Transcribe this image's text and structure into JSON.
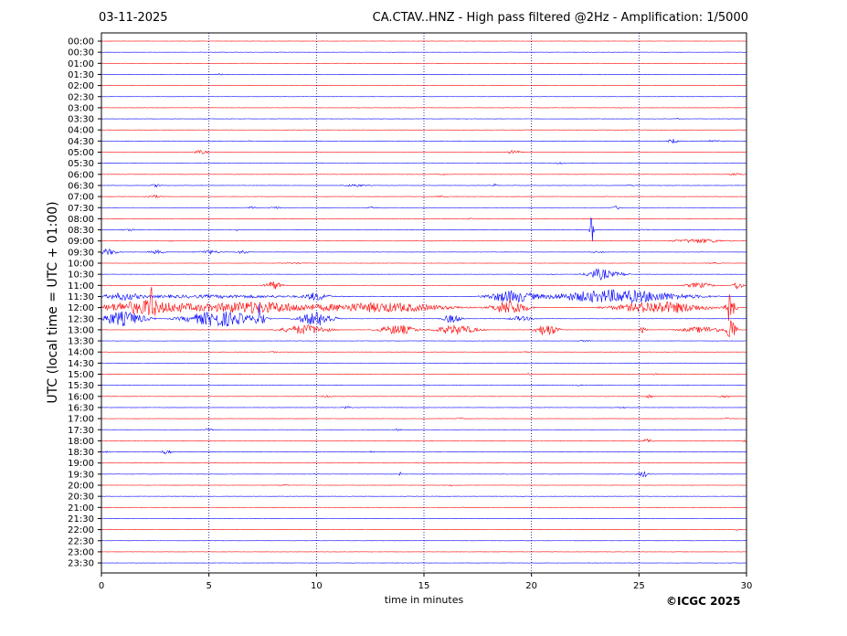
{
  "header": {
    "date": "03-11-2025",
    "title": "CA.CTAV..HNZ - High pass filtered @2Hz - Amplification: 1/5000"
  },
  "footer": {
    "copyright": "©ICGC 2025"
  },
  "chart_data": {
    "type": "line",
    "title": "CA.CTAV..HNZ - High pass filtered @2Hz - Amplification: 1/5000",
    "xlabel": "time in minutes",
    "ylabel": "UTC (local time = UTC + 01:00)",
    "xlim": [
      0,
      30
    ],
    "x_ticks": [
      0,
      5,
      10,
      15,
      20,
      25,
      30
    ],
    "grid": {
      "x": "dotted vertical at 5-minute ticks",
      "y": "one trace baseline per 30-minute row"
    },
    "row_labels": [
      "00:00",
      "00:30",
      "01:00",
      "01:30",
      "02:00",
      "02:30",
      "03:00",
      "03:30",
      "04:00",
      "04:30",
      "05:00",
      "05:30",
      "06:00",
      "06:30",
      "07:00",
      "07:30",
      "08:00",
      "08:30",
      "09:00",
      "09:30",
      "10:00",
      "10:30",
      "11:00",
      "11:30",
      "12:00",
      "12:30",
      "13:00",
      "13:30",
      "14:00",
      "14:30",
      "15:00",
      "15:30",
      "16:00",
      "16:30",
      "17:00",
      "17:30",
      "18:00",
      "18:30",
      "19:00",
      "19:30",
      "20:00",
      "20:30",
      "21:00",
      "21:30",
      "22:00",
      "22:30",
      "23:00",
      "23:30"
    ],
    "series_colors": [
      "#ff0000",
      "#0000ff"
    ],
    "activity": [
      {
        "row": "01:30",
        "bursts": [
          [
            5.5,
            0.3,
            0.15
          ],
          [
            22.3,
            0.2,
            0.1
          ]
        ]
      },
      {
        "row": "03:30",
        "bursts": [
          [
            26.8,
            0.2,
            0.1
          ]
        ]
      },
      {
        "row": "04:30",
        "bursts": [
          [
            6.9,
            0.2,
            0.08
          ],
          [
            26.6,
            0.5,
            0.35
          ],
          [
            28.5,
            1.5,
            0.1
          ]
        ]
      },
      {
        "row": "05:00",
        "bursts": [
          [
            4.6,
            0.7,
            0.3
          ],
          [
            19.2,
            0.6,
            0.3
          ]
        ]
      },
      {
        "row": "05:30",
        "bursts": [
          [
            21.3,
            0.5,
            0.12
          ]
        ]
      },
      {
        "row": "06:00",
        "bursts": [
          [
            15.9,
            0.4,
            0.1
          ],
          [
            29.5,
            0.7,
            0.15
          ]
        ]
      },
      {
        "row": "06:30",
        "bursts": [
          [
            2.6,
            0.5,
            0.25
          ],
          [
            11.8,
            1.0,
            0.2
          ],
          [
            18.3,
            0.2,
            0.3
          ],
          [
            24.6,
            0.5,
            0.1
          ]
        ]
      },
      {
        "row": "07:00",
        "bursts": [
          [
            2.4,
            0.7,
            0.25
          ],
          [
            15.8,
            0.6,
            0.1
          ]
        ]
      },
      {
        "row": "07:30",
        "bursts": [
          [
            7.0,
            0.4,
            0.2
          ],
          [
            8.1,
            0.5,
            0.15
          ],
          [
            12.6,
            0.5,
            0.1
          ],
          [
            24.0,
            0.4,
            0.3
          ]
        ]
      },
      {
        "row": "08:00",
        "bursts": [
          [
            17.1,
            0.5,
            0.1
          ]
        ]
      },
      {
        "row": "08:30",
        "bursts": [
          [
            1.3,
            0.8,
            0.15
          ],
          [
            6.3,
            0.2,
            0.15
          ],
          [
            22.8,
            0.15,
            2.4
          ],
          [
            25.2,
            0.4,
            0.15
          ]
        ]
      },
      {
        "row": "09:00",
        "bursts": [
          [
            3.2,
            0.3,
            0.1
          ],
          [
            27.8,
            2.2,
            0.35
          ]
        ]
      },
      {
        "row": "09:30",
        "bursts": [
          [
            0.3,
            0.9,
            0.5
          ],
          [
            2.6,
            0.7,
            0.3
          ],
          [
            5.0,
            1.0,
            0.3
          ],
          [
            6.6,
            0.5,
            0.3
          ],
          [
            23.1,
            0.6,
            0.15
          ]
        ]
      },
      {
        "row": "10:00",
        "bursts": [
          [
            9.0,
            1.0,
            0.1
          ],
          [
            28.5,
            0.6,
            0.1
          ]
        ]
      },
      {
        "row": "10:30",
        "bursts": [
          [
            23.2,
            1.2,
            0.9
          ],
          [
            24.2,
            0.6,
            0.3
          ],
          [
            21.0,
            0.2,
            0.1
          ]
        ]
      },
      {
        "row": "11:00",
        "bursts": [
          [
            8.0,
            0.7,
            0.7
          ],
          [
            27.8,
            1.2,
            0.45
          ],
          [
            29.6,
            0.4,
            0.7
          ]
        ]
      },
      {
        "row": "11:30",
        "bursts": [
          [
            1.0,
            1.5,
            0.5
          ],
          [
            10.0,
            1.0,
            0.6
          ],
          [
            19.0,
            2.0,
            1.0
          ],
          [
            24.0,
            6.0,
            1.1
          ],
          [
            5.0,
            10.0,
            0.25
          ]
        ]
      },
      {
        "row": "12:00",
        "bursts": [
          [
            2.3,
            0.3,
            2.5
          ],
          [
            2.0,
            4.0,
            1.1
          ],
          [
            7.0,
            5.0,
            1.0
          ],
          [
            13.0,
            6.0,
            0.8
          ],
          [
            19.0,
            1.5,
            1.3
          ],
          [
            26.0,
            4.0,
            1.0
          ],
          [
            29.2,
            0.5,
            2.5
          ]
        ]
      },
      {
        "row": "12:30",
        "bursts": [
          [
            1.0,
            2.0,
            1.2
          ],
          [
            5.5,
            3.0,
            1.3
          ],
          [
            7.4,
            0.3,
            2.5
          ],
          [
            10.0,
            1.5,
            1.2
          ],
          [
            16.3,
            0.8,
            0.7
          ],
          [
            19.5,
            1.0,
            0.4
          ]
        ]
      },
      {
        "row": "13:00",
        "bursts": [
          [
            9.5,
            2.0,
            0.8
          ],
          [
            13.8,
            1.6,
            0.8
          ],
          [
            16.5,
            1.8,
            0.8
          ],
          [
            20.7,
            1.0,
            1.0
          ],
          [
            25.2,
            0.3,
            0.5
          ],
          [
            29.3,
            0.4,
            2.2
          ],
          [
            28.0,
            2.0,
            0.5
          ]
        ]
      },
      {
        "row": "13:30",
        "bursts": [
          [
            22.5,
            0.5,
            0.15
          ]
        ]
      },
      {
        "row": "14:00",
        "bursts": [
          [
            8.0,
            0.4,
            0.12
          ],
          [
            19.8,
            0.3,
            0.12
          ]
        ]
      },
      {
        "row": "15:00",
        "bursts": [
          [
            19.8,
            0.3,
            0.15
          ],
          [
            25.8,
            0.6,
            0.12
          ],
          [
            10.0,
            0.2,
            0.1
          ]
        ]
      },
      {
        "row": "15:30",
        "bursts": [
          [
            22.2,
            0.5,
            0.1
          ]
        ]
      },
      {
        "row": "16:00",
        "bursts": [
          [
            10.5,
            0.5,
            0.15
          ],
          [
            25.5,
            0.3,
            0.3
          ],
          [
            29.0,
            0.5,
            0.15
          ]
        ]
      },
      {
        "row": "16:30",
        "bursts": [
          [
            11.4,
            0.4,
            0.2
          ],
          [
            24.2,
            0.5,
            0.12
          ]
        ]
      },
      {
        "row": "17:00",
        "bursts": [
          [
            16.7,
            0.3,
            0.12
          ],
          [
            29.1,
            0.4,
            0.12
          ]
        ]
      },
      {
        "row": "17:30",
        "bursts": [
          [
            5.0,
            0.4,
            0.18
          ],
          [
            13.8,
            0.3,
            0.15
          ]
        ]
      },
      {
        "row": "18:00",
        "bursts": [
          [
            25.4,
            0.5,
            0.3
          ],
          [
            29.9,
            0.2,
            0.2
          ]
        ]
      },
      {
        "row": "18:30",
        "bursts": [
          [
            3.0,
            0.5,
            0.3
          ],
          [
            12.5,
            0.5,
            0.12
          ],
          [
            0.2,
            0.4,
            0.12
          ]
        ]
      },
      {
        "row": "19:30",
        "bursts": [
          [
            10.0,
            0.2,
            0.15
          ],
          [
            13.9,
            0.1,
            0.4
          ],
          [
            25.2,
            0.5,
            0.5
          ]
        ]
      },
      {
        "row": "20:00",
        "bursts": [
          [
            8.5,
            0.4,
            0.15
          ],
          [
            16.3,
            0.3,
            0.12
          ]
        ]
      },
      {
        "row": "21:00",
        "bursts": [
          [
            16.8,
            0.2,
            0.1
          ]
        ]
      },
      {
        "row": "22:00",
        "bursts": [
          [
            29.6,
            0.3,
            0.15
          ]
        ]
      }
    ]
  }
}
